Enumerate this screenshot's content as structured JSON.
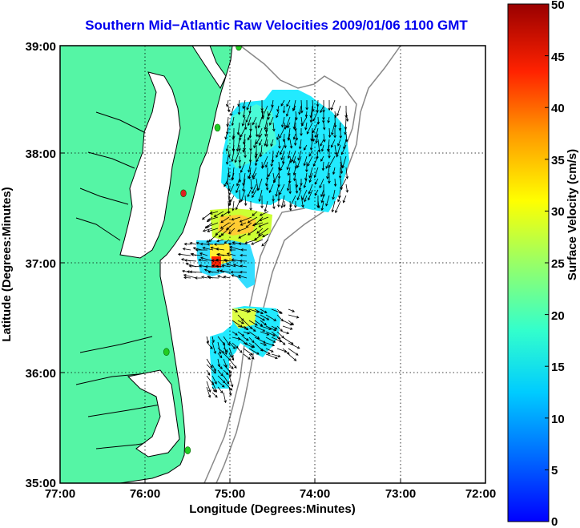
{
  "title": "Southern Mid−Atlantic Raw Velocities 2009/01/06 1100 GMT",
  "x_axis": {
    "label": "Longitude (Degrees:Minutes)",
    "ticks": [
      "77:00",
      "76:00",
      "75:00",
      "74:00",
      "73:00",
      "72:00"
    ]
  },
  "y_axis": {
    "label": "Latitude (Degrees:Minutes)",
    "ticks": [
      "39:00",
      "38:00",
      "37:00",
      "36:00",
      "35:00"
    ]
  },
  "colorbar": {
    "label": "Surface Velocity (cm/s)",
    "ticks": [
      "50",
      "45",
      "40",
      "35",
      "30",
      "25",
      "20",
      "15",
      "10",
      "5",
      "0"
    ],
    "min": 0,
    "max": 50,
    "colormap": "jet"
  },
  "colors": {
    "land": "#55f5a5",
    "coastline": "#000000",
    "bathymetry": "#888888",
    "gridlines": "#000000",
    "title": "#0000ee",
    "site_marker": "#22cc22",
    "site_marker_offline": "#dd2222"
  },
  "map_extent": {
    "lon_min": -77.0,
    "lon_max": -72.0,
    "lat_min": 35.0,
    "lat_max": 39.0
  },
  "radar_sites": [
    {
      "lon": -74.9,
      "lat": 38.99,
      "status": "online"
    },
    {
      "lon": -75.15,
      "lat": 38.25,
      "status": "online"
    },
    {
      "lon": -75.55,
      "lat": 37.65,
      "status": "offline"
    },
    {
      "lon": -75.75,
      "lat": 36.2,
      "status": "online"
    },
    {
      "lon": -75.5,
      "lat": 35.3,
      "status": "online"
    }
  ]
}
